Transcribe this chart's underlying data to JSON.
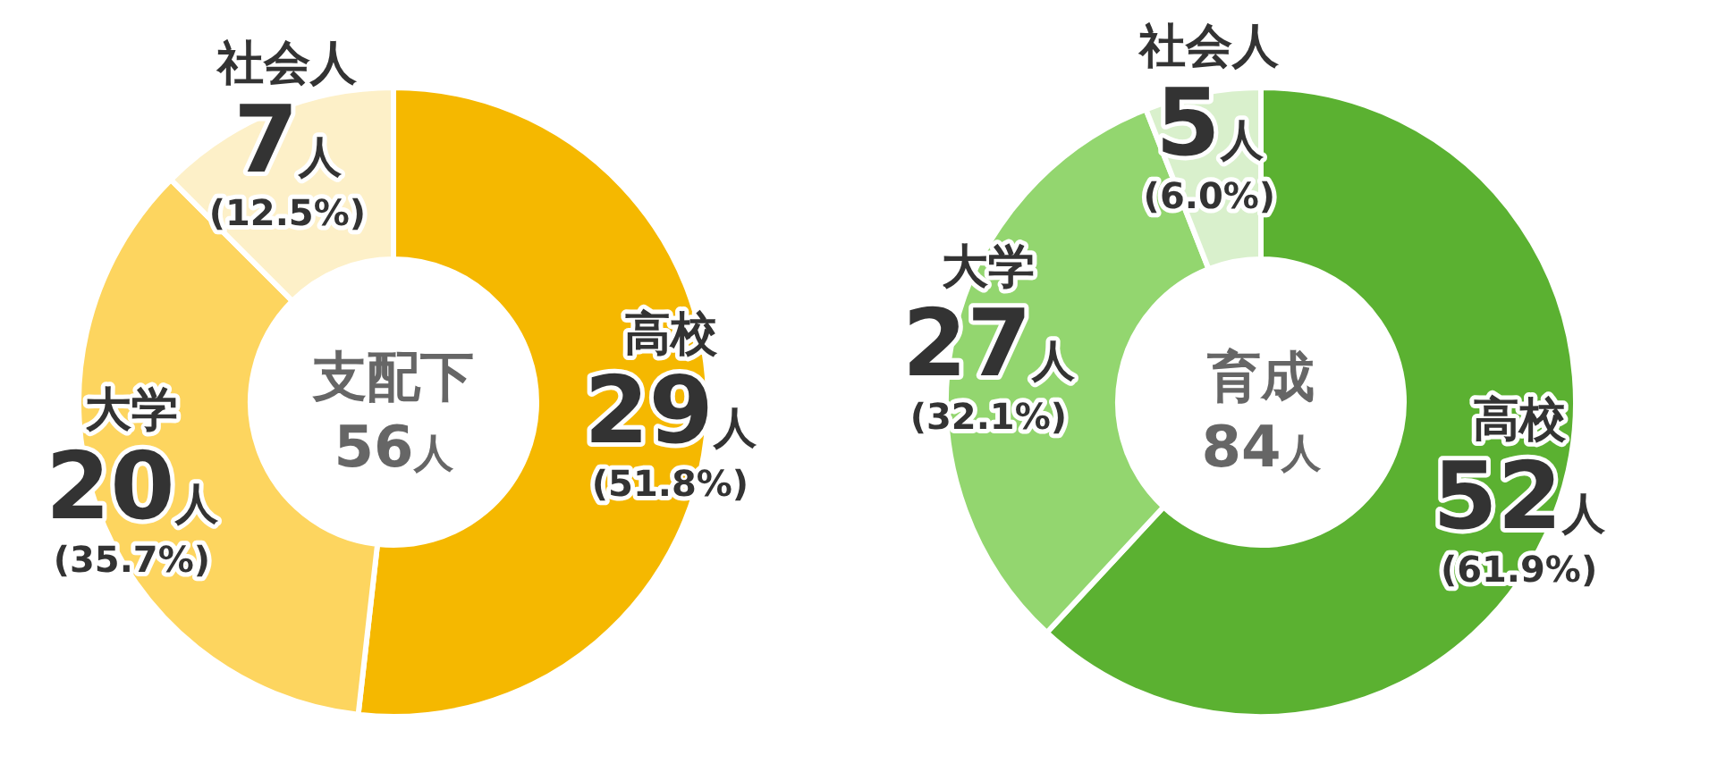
{
  "chart_data": [
    {
      "type": "donut",
      "title": "支配下",
      "subtitle": "56人",
      "categories": [
        "高校",
        "大学",
        "社会人"
      ],
      "values": [
        29,
        20,
        7
      ],
      "colors": [
        "#f5b800",
        "#fdd55f",
        "#fdf0c8"
      ],
      "value_labels": [
        "29人",
        "20人",
        "7人"
      ],
      "annotations": [
        "(51.8%)",
        "(35.7%)",
        "(12.5%)"
      ]
    },
    {
      "type": "donut",
      "title": "育成",
      "subtitle": "84人",
      "categories": [
        "高校",
        "大学",
        "社会人"
      ],
      "values": [
        52,
        27,
        5
      ],
      "colors": [
        "#5bb131",
        "#93d66f",
        "#d9f0cc"
      ],
      "value_labels": [
        "52人",
        "27人",
        "5人"
      ],
      "annotations": [
        "(61.9%)",
        "(32.1%)",
        "(6.0%)"
      ]
    }
  ]
}
